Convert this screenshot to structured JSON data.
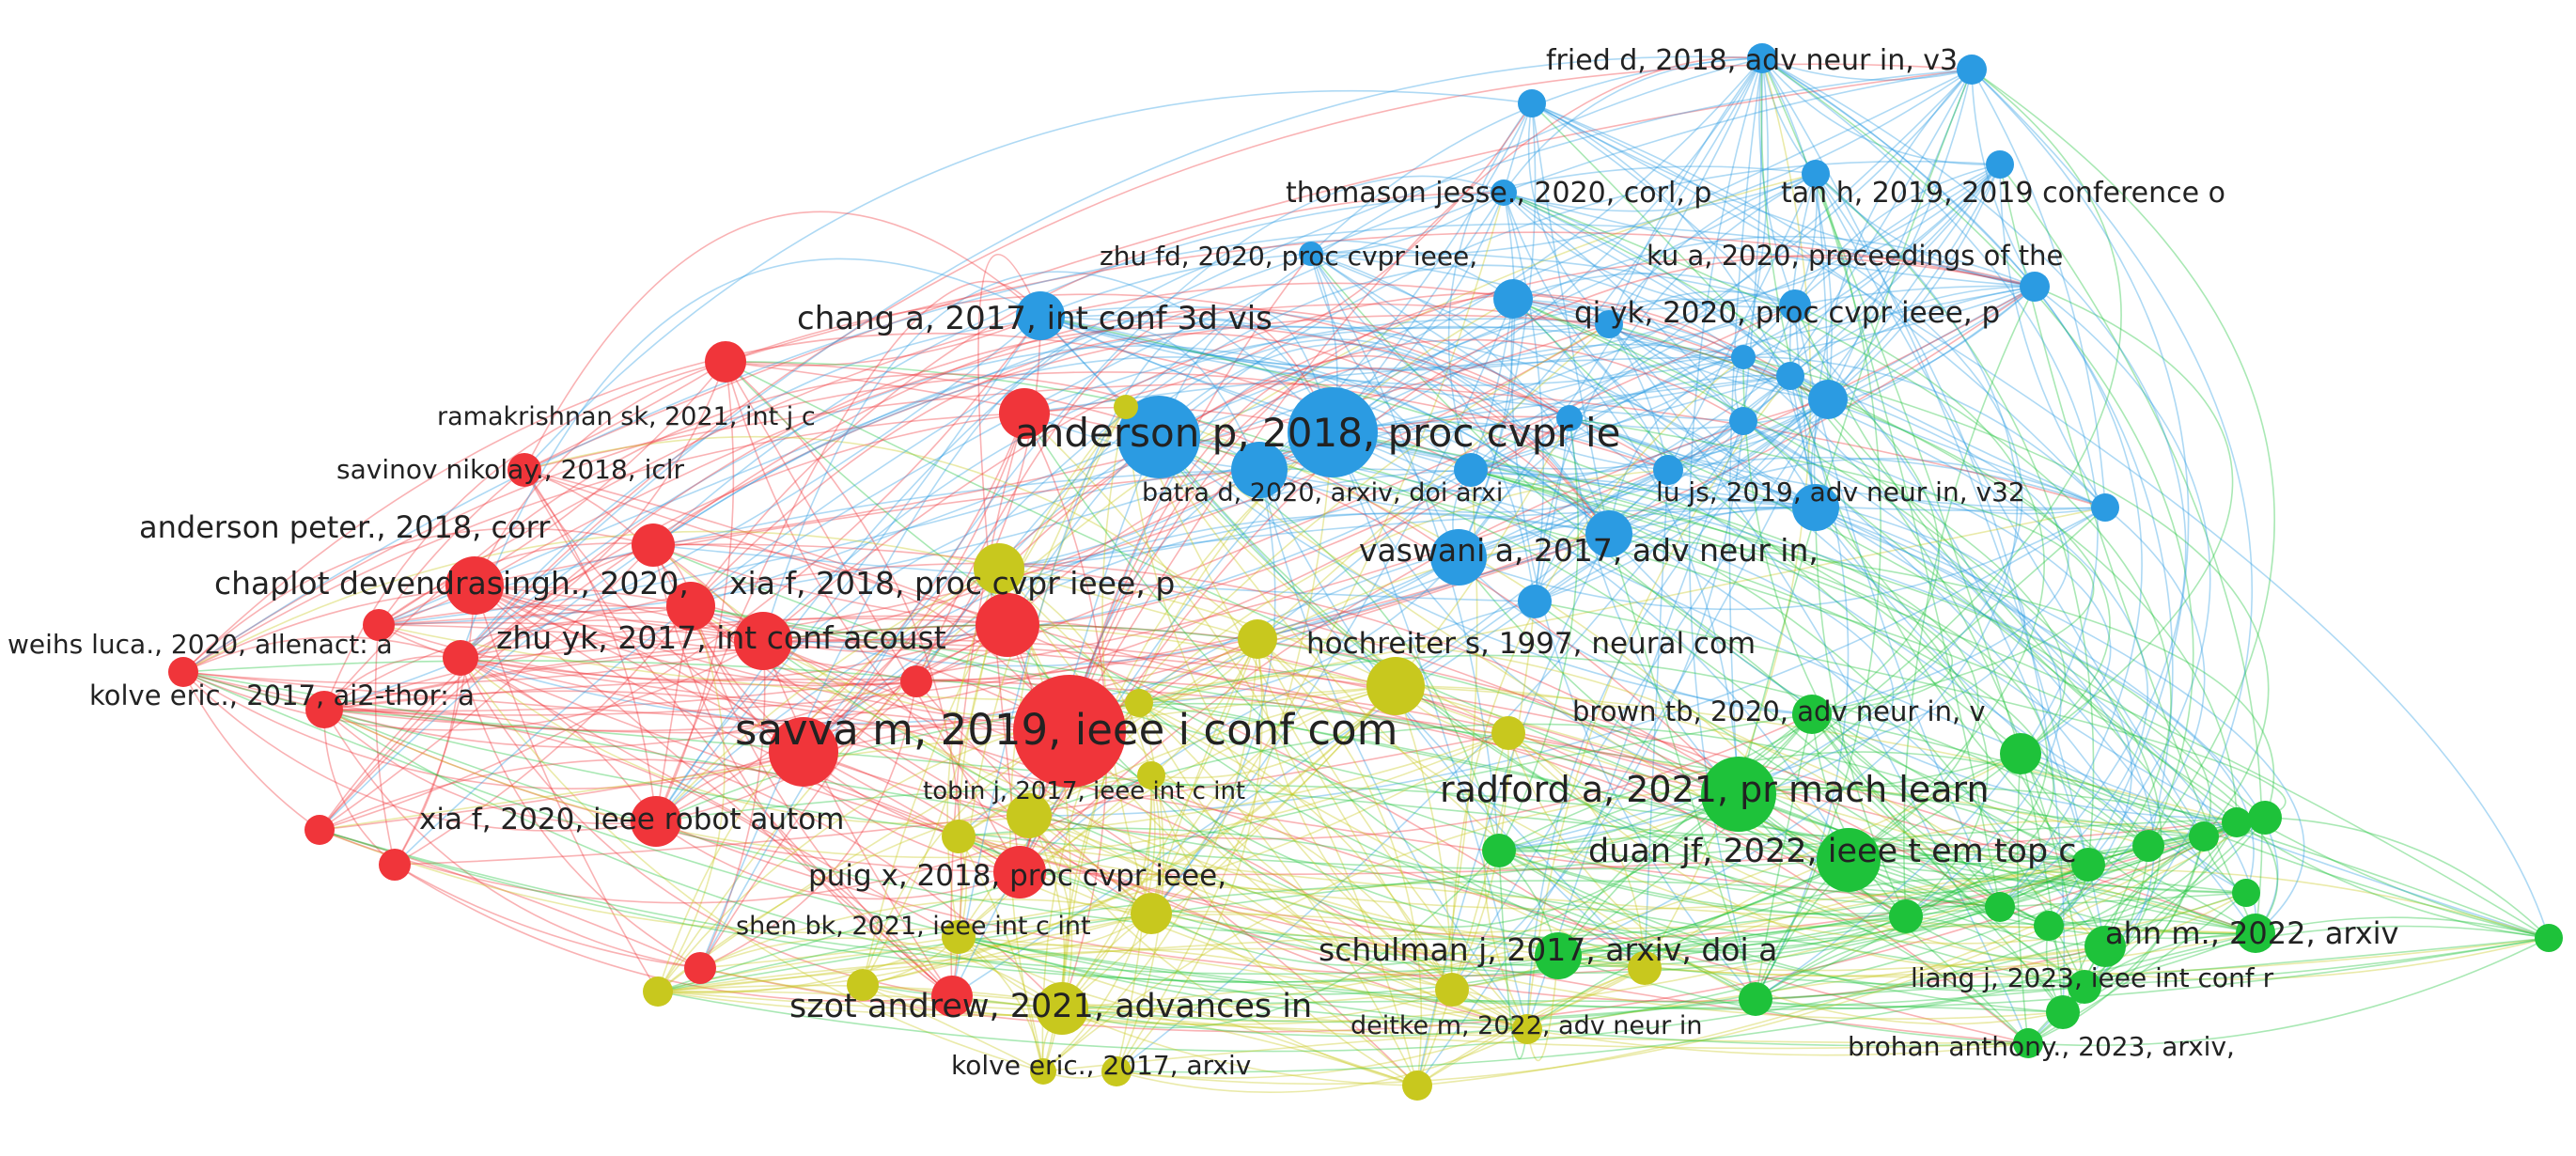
{
  "clusters": {
    "red": "#f0353a",
    "blue": "#2b9be2",
    "green": "#1ec23a",
    "yellow": "#c8c81e"
  },
  "labels": {
    "l1": "fried d, 2018, adv neur in, v3",
    "l2": "thomason jesse., 2020, corl, p",
    "l3": "tan h, 2019, 2019 conference o",
    "l4": "zhu fd, 2020, proc cvpr ieee,",
    "l5": "ku a, 2020, proceedings of the",
    "l6": "chang a, 2017, int conf 3d vis",
    "l7": "qi yk, 2020, proc cvpr ieee, p",
    "l8": "ramakrishnan sk, 2021, int j c",
    "l9": "anderson p, 2018, proc cvpr ie",
    "l10": "savinov nikolay., 2018, iclr",
    "l11": "batra d, 2020, arxiv, doi arxi",
    "l12": "lu js, 2019, adv neur in, v32",
    "l13": "anderson peter., 2018, corr",
    "l14": "vaswani a, 2017, adv neur in,",
    "l15": "chaplot devendrasingh., 2020,",
    "l16": "xia f, 2018, proc cvpr ieee, p",
    "l17": "zhu yk, 2017, int conf acoust",
    "l18": "hochreiter s, 1997, neural com",
    "l19": "weihs luca., 2020, allenact: a",
    "l20": "kolve eric., 2017, ai2-thor: a",
    "l21": "brown tb, 2020, adv neur in, v",
    "l22": "savva m, 2019, ieee i conf com",
    "l23": "tobin j, 2017, ieee int c int",
    "l24": "radford a, 2021, pr mach learn",
    "l25": "xia f, 2020, ieee robot autom",
    "l26": "duan jf, 2022, ieee t em top c",
    "l27": "puig x, 2018, proc cvpr ieee,",
    "l28": "shen bk, 2021, ieee int c int",
    "l29": "schulman j, 2017, arxiv, doi a",
    "l30": "ahn m., 2022, arxiv",
    "l31": "liang j, 2023, ieee int conf r",
    "l32": "szot andrew, 2021, advances in",
    "l33": "deitke m, 2022, adv neur in",
    "l34": "kolve eric., 2017, arxiv",
    "l35": "brohan anthony., 2023, arxiv,"
  }
}
